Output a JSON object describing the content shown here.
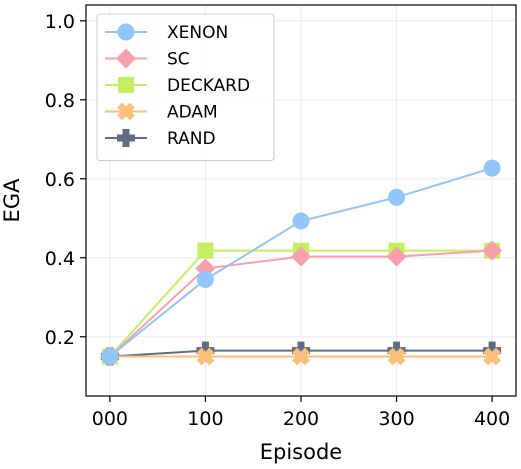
{
  "chart_data": {
    "type": "line",
    "xlabel": "Episode",
    "ylabel": "EGA",
    "x": [
      0,
      100,
      200,
      300,
      400
    ],
    "x_tick_labels": [
      "000",
      "100",
      "200",
      "300",
      "400"
    ],
    "xlim": [
      -25,
      425
    ],
    "ylim": [
      0.05,
      1.04
    ],
    "y_ticks": [
      0.2,
      0.4,
      0.6,
      0.8,
      1.0
    ],
    "y_tick_labels": [
      "0.2",
      "0.4",
      "0.6",
      "0.8",
      "1.0"
    ],
    "grid": true,
    "legend_position": "top-left",
    "series": [
      {
        "name": "XENON",
        "color": "#92c5f9",
        "marker": "circle",
        "values": [
          0.15,
          0.345,
          0.493,
          0.553,
          0.627
        ]
      },
      {
        "name": "SC",
        "color": "#f9a0ac",
        "marker": "diamond",
        "values": [
          0.15,
          0.373,
          0.403,
          0.403,
          0.418
        ]
      },
      {
        "name": "DECKARD",
        "color": "#c4f060",
        "marker": "square",
        "values": [
          0.15,
          0.418,
          0.418,
          0.418,
          0.418
        ]
      },
      {
        "name": "ADAM",
        "color": "#fbbf7c",
        "marker": "x",
        "values": [
          0.15,
          0.15,
          0.15,
          0.15,
          0.15
        ]
      },
      {
        "name": "RAND",
        "color": "#5e6d84",
        "marker": "plus",
        "values": [
          0.15,
          0.165,
          0.165,
          0.165,
          0.165
        ]
      }
    ]
  }
}
